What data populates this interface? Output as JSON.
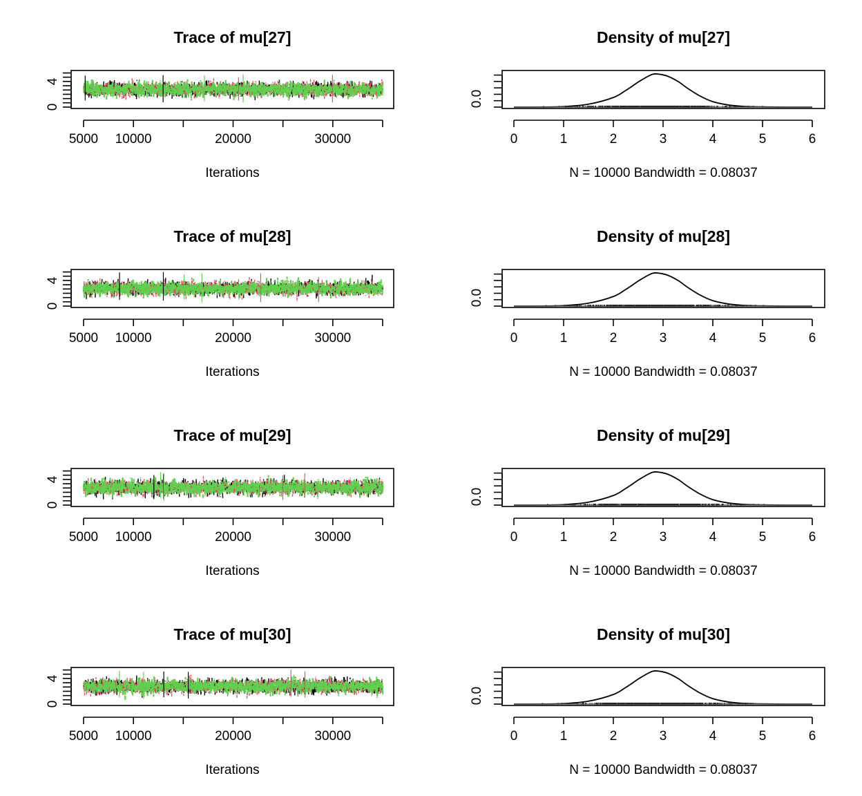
{
  "chart_data": [
    {
      "type": "line",
      "panel": "trace",
      "title": "Trace of mu[27]",
      "xlabel": "Iterations",
      "ylabel": "",
      "xlim": [
        5000,
        35000
      ],
      "ylim": [
        0,
        5.5
      ],
      "xticks": [
        5000,
        10000,
        15000,
        20000,
        25000,
        30000,
        35000
      ],
      "xtick_labels": [
        "5000",
        "10000",
        "",
        "20000",
        "",
        "30000",
        ""
      ],
      "yticks": [
        0,
        4
      ],
      "yticks_minor": [
        0.67,
        1.33,
        2,
        2.67,
        3.33,
        4.67,
        5.33
      ],
      "ytick_labels": [
        "0",
        "4"
      ],
      "series": [
        {
          "color": "#000000",
          "center": 2.75,
          "spread": 0.55
        },
        {
          "color": "#DF536B",
          "center": 2.75,
          "spread": 0.55
        },
        {
          "color": "#61D04F",
          "center": 2.75,
          "spread": 0.55
        }
      ]
    },
    {
      "type": "line",
      "panel": "density",
      "title": "Density of mu[27]",
      "xlabel": "N = 10000   Bandwidth = 0.08037",
      "xlim": [
        0,
        6
      ],
      "ylim": [
        0,
        0.55
      ],
      "xticks": [
        0,
        1,
        2,
        3,
        4,
        5,
        6
      ],
      "xtick_labels": [
        "0",
        "1",
        "2",
        "3",
        "4",
        "5",
        "6"
      ],
      "yticks": [
        0,
        0.1,
        0.2,
        0.3,
        0.4,
        0.5
      ],
      "ytick_labels": [
        "0.0"
      ],
      "x": [
        0.0,
        0.5,
        1.0,
        1.5,
        2.0,
        2.25,
        2.5,
        2.65,
        2.8,
        2.95,
        3.1,
        3.3,
        3.5,
        3.75,
        4.0,
        4.3,
        4.6,
        5.0,
        5.5,
        6.0
      ],
      "y": [
        0.0,
        0.001,
        0.008,
        0.045,
        0.15,
        0.26,
        0.39,
        0.46,
        0.515,
        0.51,
        0.48,
        0.4,
        0.29,
        0.17,
        0.085,
        0.035,
        0.012,
        0.003,
        0.0005,
        0.0
      ],
      "rug_range": [
        0.5,
        5.4
      ]
    },
    {
      "type": "line",
      "panel": "trace",
      "title": "Trace of mu[28]",
      "xlabel": "Iterations",
      "ylabel": "",
      "xlim": [
        5000,
        35000
      ],
      "ylim": [
        0,
        5.5
      ],
      "xticks": [
        5000,
        10000,
        15000,
        20000,
        25000,
        30000,
        35000
      ],
      "xtick_labels": [
        "5000",
        "10000",
        "",
        "20000",
        "",
        "30000",
        ""
      ],
      "yticks": [
        0,
        4
      ],
      "yticks_minor": [
        0.67,
        1.33,
        2,
        2.67,
        3.33,
        4.67,
        5.33
      ],
      "ytick_labels": [
        "0",
        "4"
      ],
      "series": [
        {
          "color": "#000000",
          "center": 2.75,
          "spread": 0.55
        },
        {
          "color": "#DF536B",
          "center": 2.75,
          "spread": 0.55
        },
        {
          "color": "#61D04F",
          "center": 2.75,
          "spread": 0.55
        }
      ]
    },
    {
      "type": "line",
      "panel": "density",
      "title": "Density of mu[28]",
      "xlabel": "N = 10000   Bandwidth = 0.08037",
      "xlim": [
        0,
        6
      ],
      "ylim": [
        0,
        0.55
      ],
      "xticks": [
        0,
        1,
        2,
        3,
        4,
        5,
        6
      ],
      "xtick_labels": [
        "0",
        "1",
        "2",
        "3",
        "4",
        "5",
        "6"
      ],
      "yticks": [
        0,
        0.1,
        0.2,
        0.3,
        0.4,
        0.5
      ],
      "ytick_labels": [
        "0.0"
      ],
      "x": [
        0.0,
        0.5,
        1.0,
        1.5,
        2.0,
        2.25,
        2.5,
        2.65,
        2.8,
        2.95,
        3.1,
        3.3,
        3.5,
        3.75,
        4.0,
        4.3,
        4.6,
        5.0,
        5.5,
        6.0
      ],
      "y": [
        0.0,
        0.001,
        0.008,
        0.045,
        0.15,
        0.26,
        0.39,
        0.46,
        0.515,
        0.51,
        0.48,
        0.4,
        0.29,
        0.17,
        0.085,
        0.035,
        0.012,
        0.003,
        0.0005,
        0.0
      ],
      "rug_range": [
        0.5,
        5.4
      ]
    },
    {
      "type": "line",
      "panel": "trace",
      "title": "Trace of mu[29]",
      "xlabel": "Iterations",
      "ylabel": "",
      "xlim": [
        5000,
        35000
      ],
      "ylim": [
        0,
        5.5
      ],
      "xticks": [
        5000,
        10000,
        15000,
        20000,
        25000,
        30000,
        35000
      ],
      "xtick_labels": [
        "5000",
        "10000",
        "",
        "20000",
        "",
        "30000",
        ""
      ],
      "yticks": [
        0,
        4
      ],
      "yticks_minor": [
        0.67,
        1.33,
        2,
        2.67,
        3.33,
        4.67,
        5.33
      ],
      "ytick_labels": [
        "0",
        "4"
      ],
      "series": [
        {
          "color": "#000000",
          "center": 2.75,
          "spread": 0.55
        },
        {
          "color": "#DF536B",
          "center": 2.75,
          "spread": 0.55
        },
        {
          "color": "#61D04F",
          "center": 2.75,
          "spread": 0.55
        }
      ]
    },
    {
      "type": "line",
      "panel": "density",
      "title": "Density of mu[29]",
      "xlabel": "N = 10000   Bandwidth = 0.08037",
      "xlim": [
        0,
        6
      ],
      "ylim": [
        0,
        0.55
      ],
      "xticks": [
        0,
        1,
        2,
        3,
        4,
        5,
        6
      ],
      "xtick_labels": [
        "0",
        "1",
        "2",
        "3",
        "4",
        "5",
        "6"
      ],
      "yticks": [
        0,
        0.1,
        0.2,
        0.3,
        0.4,
        0.5
      ],
      "ytick_labels": [
        "0.0"
      ],
      "x": [
        0.0,
        0.5,
        1.0,
        1.5,
        2.0,
        2.25,
        2.5,
        2.65,
        2.8,
        2.95,
        3.1,
        3.3,
        3.5,
        3.75,
        4.0,
        4.3,
        4.6,
        5.0,
        5.5,
        6.0
      ],
      "y": [
        0.0,
        0.001,
        0.008,
        0.045,
        0.15,
        0.26,
        0.39,
        0.46,
        0.515,
        0.51,
        0.48,
        0.4,
        0.29,
        0.17,
        0.085,
        0.035,
        0.012,
        0.003,
        0.0005,
        0.0
      ],
      "rug_range": [
        0.5,
        5.4
      ]
    },
    {
      "type": "line",
      "panel": "trace",
      "title": "Trace of mu[30]",
      "xlabel": "Iterations",
      "ylabel": "",
      "xlim": [
        5000,
        35000
      ],
      "ylim": [
        0,
        5.5
      ],
      "xticks": [
        5000,
        10000,
        15000,
        20000,
        25000,
        30000,
        35000
      ],
      "xtick_labels": [
        "5000",
        "10000",
        "",
        "20000",
        "",
        "30000",
        ""
      ],
      "yticks": [
        0,
        4
      ],
      "yticks_minor": [
        0.67,
        1.33,
        2,
        2.67,
        3.33,
        4.67,
        5.33
      ],
      "ytick_labels": [
        "0",
        "4"
      ],
      "series": [
        {
          "color": "#000000",
          "center": 2.75,
          "spread": 0.55
        },
        {
          "color": "#DF536B",
          "center": 2.75,
          "spread": 0.55
        },
        {
          "color": "#61D04F",
          "center": 2.75,
          "spread": 0.55
        }
      ]
    },
    {
      "type": "line",
      "panel": "density",
      "title": "Density of mu[30]",
      "xlabel": "N = 10000   Bandwidth = 0.08037",
      "xlim": [
        0,
        6
      ],
      "ylim": [
        0,
        0.55
      ],
      "xticks": [
        0,
        1,
        2,
        3,
        4,
        5,
        6
      ],
      "xtick_labels": [
        "0",
        "1",
        "2",
        "3",
        "4",
        "5",
        "6"
      ],
      "yticks": [
        0,
        0.1,
        0.2,
        0.3,
        0.4,
        0.5
      ],
      "ytick_labels": [
        "0.0"
      ],
      "x": [
        0.0,
        0.5,
        1.0,
        1.5,
        2.0,
        2.25,
        2.5,
        2.65,
        2.8,
        2.95,
        3.1,
        3.3,
        3.5,
        3.75,
        4.0,
        4.3,
        4.6,
        5.0,
        5.5,
        6.0
      ],
      "y": [
        0.0,
        0.001,
        0.008,
        0.045,
        0.15,
        0.26,
        0.39,
        0.46,
        0.515,
        0.51,
        0.48,
        0.4,
        0.29,
        0.17,
        0.085,
        0.035,
        0.012,
        0.003,
        0.0005,
        0.0
      ],
      "rug_range": [
        0.5,
        5.4
      ]
    }
  ]
}
